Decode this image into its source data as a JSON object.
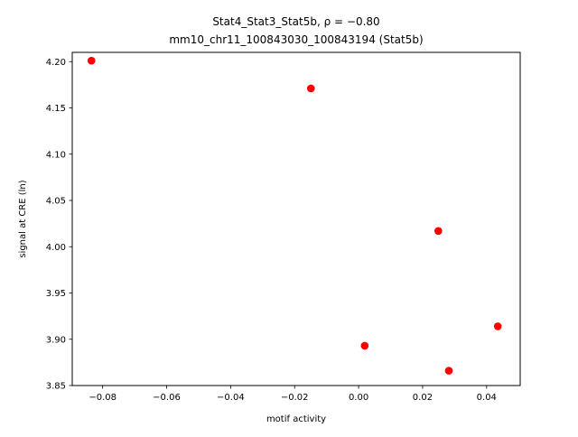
{
  "chart_data": {
    "type": "scatter",
    "title_line1": "Stat4_Stat3_Stat5b, ρ = −0.80",
    "title_line2": "mm10_chr11_100843030_100843194 (Stat5b)",
    "xlabel": "motif activity",
    "ylabel": "signal at CRE (ln)",
    "xlim": [
      -0.0895,
      0.0505
    ],
    "ylim": [
      3.85,
      4.21
    ],
    "xticks": [
      -0.08,
      -0.06,
      -0.04,
      -0.02,
      0.0,
      0.02,
      0.04
    ],
    "xtick_labels": [
      "−0.08",
      "−0.06",
      "−0.04",
      "−0.02",
      "0.00",
      "0.02",
      "0.04"
    ],
    "yticks": [
      3.85,
      3.9,
      3.95,
      4.0,
      4.05,
      4.1,
      4.15,
      4.2
    ],
    "ytick_labels": [
      "3.85",
      "3.90",
      "3.95",
      "4.00",
      "4.05",
      "4.10",
      "4.15",
      "4.20"
    ],
    "grid": false,
    "marker_color": "#ff0000",
    "points": [
      {
        "x": -0.0835,
        "y": 4.201
      },
      {
        "x": -0.0149,
        "y": 4.171
      },
      {
        "x": 0.0249,
        "y": 4.017
      },
      {
        "x": 0.0435,
        "y": 3.914
      },
      {
        "x": 0.0019,
        "y": 3.893
      },
      {
        "x": 0.0282,
        "y": 3.866
      }
    ]
  }
}
